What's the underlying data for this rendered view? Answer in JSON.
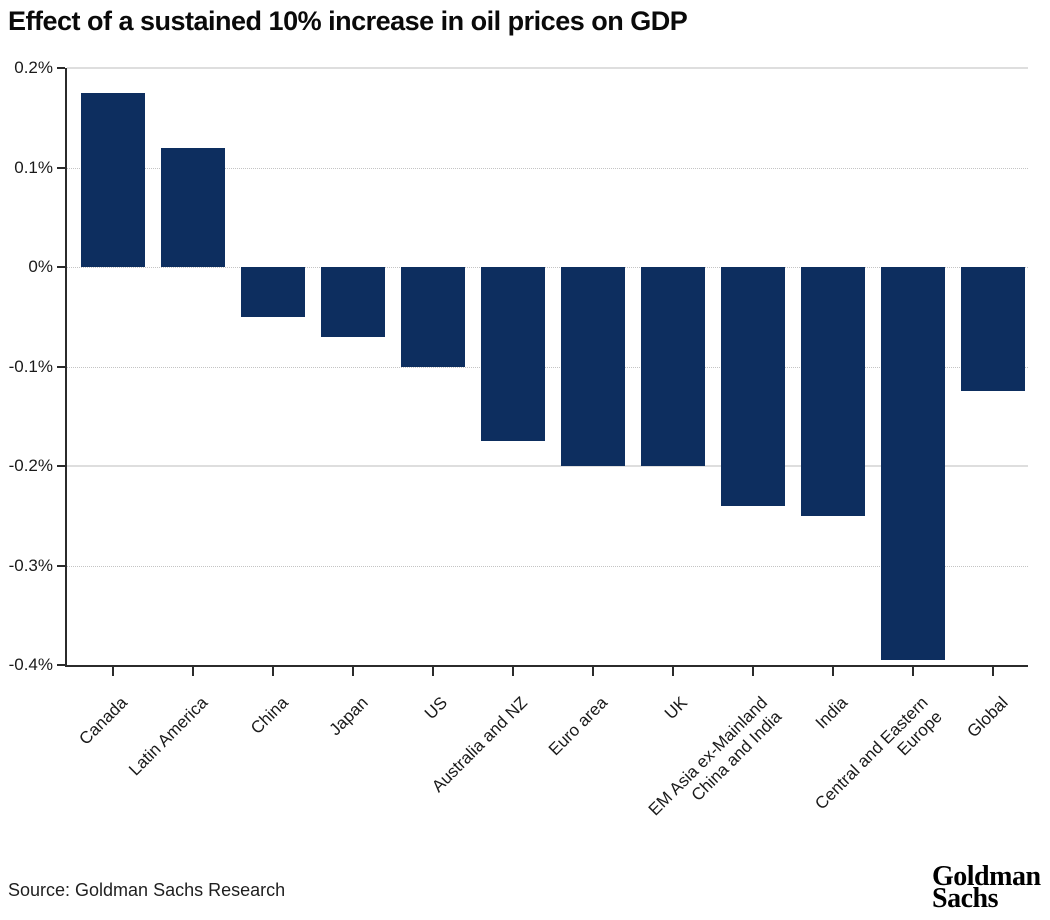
{
  "title": "Effect of a sustained 10% increase in oil prices on GDP",
  "source": "Source: Goldman Sachs Research",
  "logo": {
    "line1": "Goldman",
    "line2": "Sachs"
  },
  "chart_data": {
    "type": "bar",
    "title": "Effect of a sustained 10% increase in oil prices on GDP",
    "xlabel": "",
    "ylabel": "",
    "ylim": [
      -0.4,
      0.2
    ],
    "grid": "horizontal",
    "legend": "none",
    "bar_color": "#0d2e5f",
    "categories": [
      "Canada",
      "Latin America",
      "China",
      "Japan",
      "US",
      "Australia and NZ",
      "Euro area",
      "UK",
      "EM Asia ex-Mainland\nChina and India",
      "India",
      "Central and Eastern\nEurope",
      "Global"
    ],
    "values": [
      0.175,
      0.12,
      -0.05,
      -0.07,
      -0.1,
      -0.175,
      -0.2,
      -0.2,
      -0.24,
      -0.25,
      -0.395,
      -0.125
    ],
    "unit": "% of GDP",
    "yticks": [
      {
        "value": 0.2,
        "label": "0.2%",
        "style": "solid"
      },
      {
        "value": 0.1,
        "label": "0.1%",
        "style": "dotted"
      },
      {
        "value": 0,
        "label": "0%",
        "style": "dotted"
      },
      {
        "value": -0.1,
        "label": "-0.1%",
        "style": "dotted"
      },
      {
        "value": -0.2,
        "label": "-0.2%",
        "style": "solid"
      },
      {
        "value": -0.3,
        "label": "-0.3%",
        "style": "dotted"
      },
      {
        "value": -0.4,
        "label": "-0.4%",
        "style": "axis"
      }
    ]
  }
}
